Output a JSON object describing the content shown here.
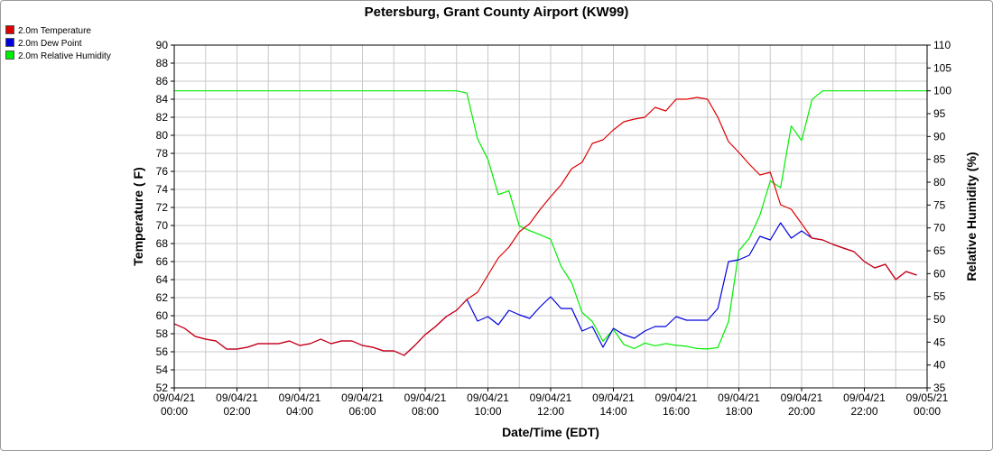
{
  "chart_data": {
    "type": "line",
    "title": "Petersburg, Grant County Airport (KW99)",
    "xlabel": "Date/Time (EDT)",
    "ylabel_left": "Temperature ( F)",
    "ylabel_right": "Relative Humidity (%)",
    "xlim_hours": [
      0,
      24
    ],
    "ylim_left": [
      52,
      90
    ],
    "ylim_right": [
      35,
      110
    ],
    "left_ticks": [
      52,
      54,
      56,
      58,
      60,
      62,
      64,
      66,
      68,
      70,
      72,
      74,
      76,
      78,
      80,
      82,
      84,
      86,
      88,
      90
    ],
    "right_ticks": [
      35,
      40,
      45,
      50,
      55,
      60,
      65,
      70,
      75,
      80,
      85,
      90,
      95,
      100,
      105,
      110
    ],
    "x_ticks": [
      {
        "hour": 0,
        "date": "09/04/21",
        "time": "00:00"
      },
      {
        "hour": 2,
        "date": "09/04/21",
        "time": "02:00"
      },
      {
        "hour": 4,
        "date": "09/04/21",
        "time": "04:00"
      },
      {
        "hour": 6,
        "date": "09/04/21",
        "time": "06:00"
      },
      {
        "hour": 8,
        "date": "09/04/21",
        "time": "08:00"
      },
      {
        "hour": 10,
        "date": "09/04/21",
        "time": "10:00"
      },
      {
        "hour": 12,
        "date": "09/04/21",
        "time": "12:00"
      },
      {
        "hour": 14,
        "date": "09/04/21",
        "time": "14:00"
      },
      {
        "hour": 16,
        "date": "09/04/21",
        "time": "16:00"
      },
      {
        "hour": 18,
        "date": "09/04/21",
        "time": "18:00"
      },
      {
        "hour": 20,
        "date": "09/04/21",
        "time": "20:00"
      },
      {
        "hour": 22,
        "date": "09/04/21",
        "time": "22:00"
      },
      {
        "hour": 24,
        "date": "09/05/21",
        "time": "00:00"
      }
    ],
    "grid": true,
    "legend_position": "top-left",
    "series": [
      {
        "name": "2.0m Temperature",
        "color": "#dd0000",
        "axis": "left",
        "x": [
          0,
          0.33,
          0.67,
          1,
          1.33,
          1.67,
          2,
          2.33,
          2.67,
          3,
          3.33,
          3.67,
          4,
          4.33,
          4.67,
          5,
          5.33,
          5.67,
          6,
          6.33,
          6.67,
          7,
          7.33,
          7.67,
          8,
          8.33,
          8.67,
          9,
          9.33,
          9.67,
          10,
          10.33,
          10.67,
          11,
          11.33,
          11.67,
          12,
          12.33,
          12.67,
          13,
          13.33,
          13.67,
          14,
          14.33,
          14.67,
          15,
          15.33,
          15.67,
          16,
          16.33,
          16.67,
          17,
          17.33,
          17.67,
          18,
          18.33,
          18.67,
          19,
          19.33,
          19.67,
          20,
          20.33,
          20.67,
          21,
          21.33,
          21.67,
          22,
          22.33,
          22.67,
          23,
          23.33,
          23.67,
          24
        ],
        "values": [
          59.1,
          58.6,
          57.7,
          57.4,
          57.2,
          56.3,
          56.3,
          56.5,
          56.9,
          56.9,
          56.9,
          57.2,
          56.7,
          56.9,
          57.4,
          56.9,
          57.2,
          57.2,
          56.7,
          56.5,
          56.1,
          56.1,
          55.6,
          56.7,
          57.9,
          58.8,
          59.9,
          60.6,
          61.8,
          62.6,
          64.5,
          66.4,
          67.6,
          69.3,
          70.2,
          71.8,
          73.2,
          74.5,
          76.3,
          77.0,
          79.1,
          79.5,
          80.6,
          81.5,
          81.8,
          82.0,
          83.1,
          82.7,
          84.0,
          84.0,
          84.2,
          84.0,
          82.0,
          79.3,
          78.1,
          76.8,
          75.6,
          75.9,
          72.3,
          71.8,
          70.2,
          68.6,
          68.4,
          67.9,
          67.5,
          67.1,
          66.0,
          65.3,
          65.7,
          64.0,
          64.9,
          64.5,
          null
        ]
      },
      {
        "name": "2.0m Dew Point",
        "color": "#0000dd",
        "axis": "left",
        "x": [
          0,
          0.33,
          0.67,
          1,
          1.33,
          1.67,
          2,
          2.33,
          2.67,
          3,
          3.33,
          3.67,
          4,
          4.33,
          4.67,
          5,
          5.33,
          5.67,
          6,
          6.33,
          6.67,
          7,
          7.33,
          7.67,
          8,
          8.33,
          8.67,
          9,
          9.33,
          9.67,
          10,
          10.33,
          10.67,
          11,
          11.33,
          11.67,
          12,
          12.33,
          12.67,
          13,
          13.33,
          13.67,
          14,
          14.33,
          14.67,
          15,
          15.33,
          15.67,
          16,
          16.33,
          16.67,
          17,
          17.33,
          17.67,
          18,
          18.33,
          18.67,
          19,
          19.33,
          19.67,
          20,
          20.33,
          20.67,
          21,
          21.33,
          21.67,
          22,
          22.33,
          22.67,
          23,
          23.33,
          23.67,
          24
        ],
        "values": [
          59.1,
          58.6,
          57.7,
          57.4,
          57.2,
          56.3,
          56.3,
          56.5,
          56.9,
          56.9,
          56.9,
          57.2,
          56.7,
          56.9,
          57.4,
          56.9,
          57.2,
          57.2,
          56.7,
          56.5,
          56.1,
          56.1,
          55.6,
          56.7,
          57.9,
          58.8,
          59.9,
          60.6,
          61.8,
          59.4,
          59.9,
          59.0,
          60.6,
          60.1,
          59.7,
          61.0,
          62.1,
          60.8,
          60.8,
          58.3,
          58.8,
          56.5,
          58.6,
          57.9,
          57.5,
          58.3,
          58.8,
          58.8,
          59.9,
          59.5,
          59.5,
          59.5,
          60.8,
          66.0,
          66.2,
          66.7,
          68.8,
          68.4,
          70.3,
          68.6,
          69.4,
          68.6,
          68.4,
          67.9,
          67.5,
          67.1,
          66.0,
          65.3,
          65.7,
          64.0,
          64.9,
          64.5,
          null
        ]
      },
      {
        "name": "2.0m Relative Humidity",
        "color": "#00ee00",
        "axis": "right",
        "x": [
          0,
          0.33,
          0.67,
          1,
          1.33,
          1.67,
          2,
          2.33,
          2.67,
          3,
          3.33,
          3.67,
          4,
          4.33,
          4.67,
          5,
          5.33,
          5.67,
          6,
          6.33,
          6.67,
          7,
          7.33,
          7.67,
          8,
          8.33,
          8.67,
          9,
          9.33,
          9.67,
          10,
          10.33,
          10.67,
          11,
          11.33,
          11.67,
          12,
          12.33,
          12.67,
          13,
          13.33,
          13.67,
          14,
          14.33,
          14.67,
          15,
          15.33,
          15.67,
          16,
          16.33,
          16.67,
          17,
          17.33,
          17.67,
          18,
          18.33,
          18.67,
          19,
          19.33,
          19.67,
          20,
          20.33,
          20.67,
          21,
          21.33,
          21.67,
          22,
          22.33,
          22.67,
          23,
          23.33,
          23.67,
          24
        ],
        "values": [
          100,
          100,
          100,
          100,
          100,
          100,
          100,
          100,
          100,
          100,
          100,
          100,
          100,
          100,
          100,
          100,
          100,
          100,
          100,
          100,
          100,
          100,
          100,
          100,
          100,
          100,
          100,
          100,
          99.5,
          89.5,
          85.0,
          77.3,
          78.1,
          70.4,
          69.4,
          68.5,
          67.5,
          61.6,
          58.0,
          51.5,
          49.5,
          45.2,
          47.8,
          44.5,
          43.6,
          44.8,
          44.2,
          44.7,
          44.3,
          44.1,
          43.6,
          43.5,
          43.8,
          49.5,
          65.0,
          67.7,
          72.8,
          80.3,
          78.8,
          92.3,
          89.1,
          98.1,
          100,
          100,
          100,
          100,
          100,
          100,
          100,
          100,
          100,
          100,
          100
        ]
      }
    ]
  }
}
